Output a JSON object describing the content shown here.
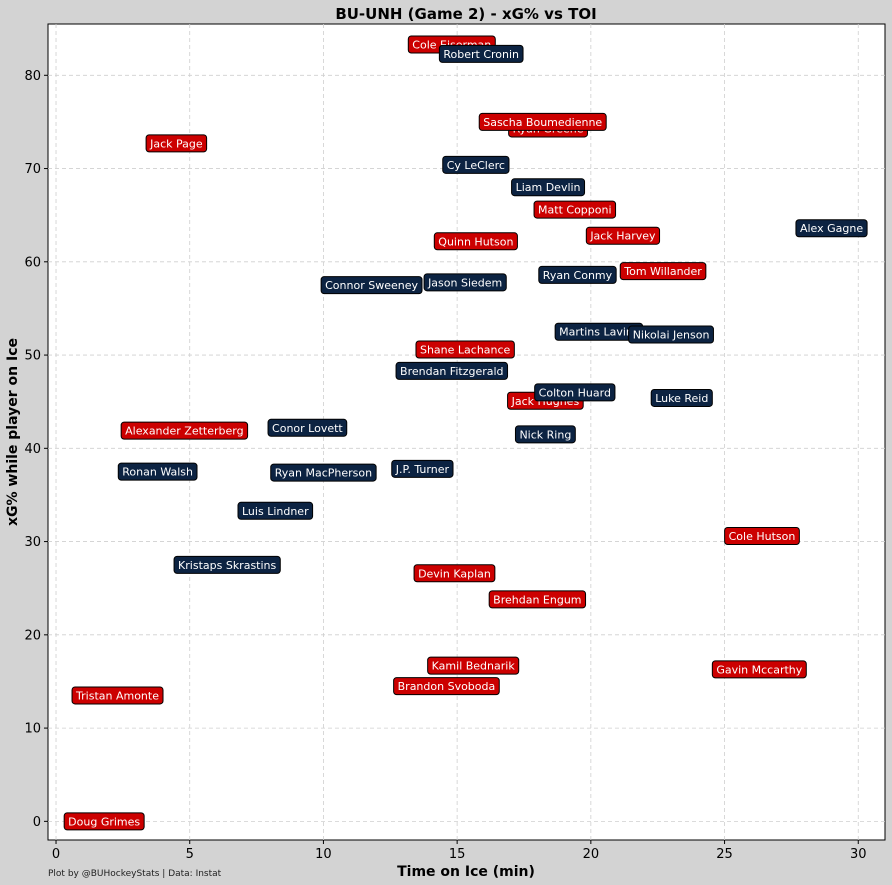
{
  "chart_data": {
    "type": "scatter",
    "title": "BU-UNH (Game 2) - xG% vs TOI",
    "xlabel": "Time on Ice (min)",
    "ylabel": "xG% while player on Ice",
    "xlim": [
      -0.3,
      31
    ],
    "ylim": [
      -2,
      85.5
    ],
    "xticks": [
      0,
      5,
      10,
      15,
      20,
      25,
      30
    ],
    "yticks": [
      0,
      10,
      20,
      30,
      40,
      50,
      60,
      70,
      80
    ],
    "grid": true,
    "credit": "Plot by @BUHockeyStats | Data: Instat",
    "colors": {
      "BU": "#cc0000",
      "UNH": "#0c2342",
      "border": "#000000"
    },
    "points": [
      {
        "name": "Cole Eiserman",
        "team": "BU",
        "x": 14.8,
        "y": 83.3
      },
      {
        "name": "Robert Cronin",
        "team": "UNH",
        "x": 15.9,
        "y": 82.3
      },
      {
        "name": "Ryan Greene",
        "team": "BU",
        "x": 18.4,
        "y": 74.3
      },
      {
        "name": "Sascha Boumedienne",
        "team": "BU",
        "x": 18.2,
        "y": 75.0
      },
      {
        "name": "Jack Page",
        "team": "BU",
        "x": 4.5,
        "y": 72.7
      },
      {
        "name": "Cy LeClerc",
        "team": "UNH",
        "x": 15.7,
        "y": 70.4
      },
      {
        "name": "Liam Devlin",
        "team": "UNH",
        "x": 18.4,
        "y": 68.0
      },
      {
        "name": "Matt Copponi",
        "team": "BU",
        "x": 19.4,
        "y": 65.6
      },
      {
        "name": "Alex Gagne",
        "team": "UNH",
        "x": 29.0,
        "y": 63.6
      },
      {
        "name": "Jack Harvey",
        "team": "BU",
        "x": 21.2,
        "y": 62.8
      },
      {
        "name": "Quinn Hutson",
        "team": "BU",
        "x": 15.7,
        "y": 62.2
      },
      {
        "name": "Tom Willander",
        "team": "BU",
        "x": 22.7,
        "y": 59.0
      },
      {
        "name": "Ryan Conmy",
        "team": "UNH",
        "x": 19.5,
        "y": 58.6
      },
      {
        "name": "Connor Sweeney",
        "team": "UNH",
        "x": 11.8,
        "y": 57.5
      },
      {
        "name": "Jason Siedem",
        "team": "UNH",
        "x": 15.3,
        "y": 57.8
      },
      {
        "name": "Martins Lavins",
        "team": "UNH",
        "x": 20.3,
        "y": 52.5
      },
      {
        "name": "Nikolai Jenson",
        "team": "UNH",
        "x": 23.0,
        "y": 52.2
      },
      {
        "name": "Shane Lachance",
        "team": "BU",
        "x": 15.3,
        "y": 50.6
      },
      {
        "name": "Brendan Fitzgerald",
        "team": "UNH",
        "x": 14.8,
        "y": 48.3
      },
      {
        "name": "Jack Hughes",
        "team": "BU",
        "x": 18.3,
        "y": 45.1
      },
      {
        "name": "Colton Huard",
        "team": "UNH",
        "x": 19.4,
        "y": 46.0
      },
      {
        "name": "Luke Reid",
        "team": "UNH",
        "x": 23.4,
        "y": 45.4
      },
      {
        "name": "Nick Ring",
        "team": "UNH",
        "x": 18.3,
        "y": 41.5
      },
      {
        "name": "Alexander Zetterberg",
        "team": "BU",
        "x": 4.8,
        "y": 41.9
      },
      {
        "name": "Conor Lovett",
        "team": "UNH",
        "x": 9.4,
        "y": 42.2
      },
      {
        "name": "Ronan Walsh",
        "team": "UNH",
        "x": 3.8,
        "y": 37.5
      },
      {
        "name": "Ryan MacPherson",
        "team": "UNH",
        "x": 10.0,
        "y": 37.4
      },
      {
        "name": "J.P. Turner",
        "team": "UNH",
        "x": 13.7,
        "y": 37.8
      },
      {
        "name": "Luis Lindner",
        "team": "UNH",
        "x": 8.2,
        "y": 33.3
      },
      {
        "name": "Cole Hutson",
        "team": "BU",
        "x": 26.4,
        "y": 30.6
      },
      {
        "name": "Kristaps Skrastins",
        "team": "UNH",
        "x": 6.4,
        "y": 27.5
      },
      {
        "name": "Devin Kaplan",
        "team": "BU",
        "x": 14.9,
        "y": 26.6
      },
      {
        "name": "Brehdan Engum",
        "team": "BU",
        "x": 18.0,
        "y": 23.8
      },
      {
        "name": "Kamil Bednarik",
        "team": "BU",
        "x": 15.6,
        "y": 16.7
      },
      {
        "name": "Gavin Mccarthy",
        "team": "BU",
        "x": 26.3,
        "y": 16.3
      },
      {
        "name": "Brandon Svoboda",
        "team": "BU",
        "x": 14.6,
        "y": 14.5
      },
      {
        "name": "Tristan Amonte",
        "team": "BU",
        "x": 2.3,
        "y": 13.5
      },
      {
        "name": "Doug Grimes",
        "team": "BU",
        "x": 1.8,
        "y": 0.0
      }
    ]
  }
}
